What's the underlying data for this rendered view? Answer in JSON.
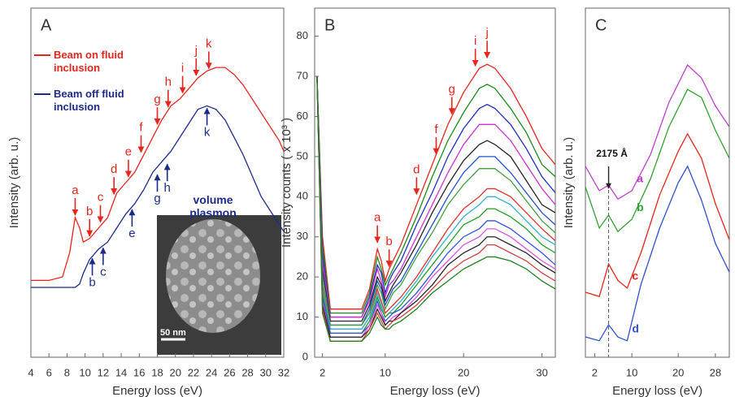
{
  "chart_data": [
    {
      "type": "line",
      "title": "A",
      "x_label": "Energy loss (eV)",
      "y_label": "Intensity (arb. u.)",
      "xlim": [
        4,
        32
      ],
      "ylim": [
        0,
        100
      ],
      "xticks": [
        4,
        6,
        8,
        10,
        12,
        14,
        16,
        18,
        20,
        22,
        24,
        26,
        28,
        30,
        32
      ],
      "x": [
        4,
        6,
        7.5,
        8.3,
        8.9,
        9.4,
        9.8,
        10.5,
        11.5,
        12.5,
        13.5,
        14.5,
        15.5,
        16.5,
        17.5,
        18.5,
        19.5,
        20.5,
        21.5,
        22.5,
        23.5,
        24.5,
        25.5,
        26.5,
        27.5,
        28.5,
        29.5,
        30.5,
        31.5,
        32
      ],
      "series": [
        {
          "name": "Beam on fluid inclusion",
          "color": "#e8241c",
          "values": [
            22,
            22,
            23,
            30,
            40,
            37,
            33,
            34,
            37,
            40,
            47,
            50,
            53,
            58,
            63,
            68,
            72,
            74,
            77,
            80,
            82,
            83,
            83,
            81,
            78,
            74,
            70,
            66,
            62,
            59
          ]
        },
        {
          "name": "Beam off fluid inclusion",
          "color": "#1c2a8a",
          "values": [
            20,
            20,
            20,
            20,
            20,
            21,
            24,
            28,
            31,
            33,
            37,
            41,
            44,
            48,
            53,
            56,
            59,
            63,
            67,
            71,
            72,
            71,
            68,
            63,
            58,
            52,
            46,
            42,
            38,
            36
          ]
        }
      ],
      "annotations": [
        {
          "text": "a",
          "x": 8.9,
          "y": 40,
          "color": "#e8241c",
          "direction": "down"
        },
        {
          "text": "b",
          "x": 10.5,
          "y": 34,
          "color": "#e8241c",
          "direction": "down"
        },
        {
          "text": "c",
          "x": 11.7,
          "y": 38,
          "color": "#e8241c",
          "direction": "down"
        },
        {
          "text": "d",
          "x": 13.2,
          "y": 46,
          "color": "#e8241c",
          "direction": "down"
        },
        {
          "text": "e",
          "x": 14.8,
          "y": 51,
          "color": "#e8241c",
          "direction": "down"
        },
        {
          "text": "f",
          "x": 16.2,
          "y": 58,
          "color": "#e8241c",
          "direction": "down"
        },
        {
          "text": "g",
          "x": 18,
          "y": 66,
          "color": "#e8241c",
          "direction": "down"
        },
        {
          "text": "h",
          "x": 19.2,
          "y": 71,
          "color": "#e8241c",
          "direction": "down"
        },
        {
          "text": "i",
          "x": 20.8,
          "y": 75,
          "color": "#e8241c",
          "direction": "down"
        },
        {
          "text": "j",
          "x": 22.3,
          "y": 80,
          "color": "#e8241c",
          "direction": "down"
        },
        {
          "text": "k",
          "x": 23.7,
          "y": 82,
          "color": "#e8241c",
          "direction": "down"
        },
        {
          "text": "b",
          "x": 10.8,
          "y": 29,
          "color": "#1c2a8a",
          "direction": "up"
        },
        {
          "text": "c",
          "x": 12,
          "y": 32,
          "color": "#1c2a8a",
          "direction": "up"
        },
        {
          "text": "e",
          "x": 15.2,
          "y": 43,
          "color": "#1c2a8a",
          "direction": "up"
        },
        {
          "text": "g",
          "x": 18,
          "y": 53,
          "color": "#1c2a8a",
          "direction": "up"
        },
        {
          "text": "h",
          "x": 19.1,
          "y": 56,
          "color": "#1c2a8a",
          "direction": "up"
        },
        {
          "text": "k",
          "x": 23.5,
          "y": 72,
          "color": "#1c2a8a",
          "direction": "up"
        }
      ],
      "note": "volume plasmon",
      "inset_label": "50 nm"
    },
    {
      "type": "line",
      "title": "B",
      "x_label": "Energy loss (eV)",
      "y_label": "Intensity counts ( x 10³ )",
      "xlim": [
        1,
        31.7
      ],
      "ylim": [
        0,
        87
      ],
      "xticks": [
        2,
        10,
        20,
        30
      ],
      "yticks": [
        0,
        10,
        20,
        30,
        40,
        50,
        60,
        70,
        80
      ],
      "x": [
        1.3,
        2,
        3,
        5,
        7,
        8,
        9,
        9.5,
        10,
        10.5,
        11,
        12,
        14,
        16,
        18,
        20,
        22,
        23,
        24,
        26,
        28,
        30,
        31.7
      ],
      "series": [
        {
          "color": "#e8241c",
          "values": [
            70,
            30,
            12,
            12,
            12,
            17,
            27,
            24,
            19,
            22,
            24,
            28,
            38,
            48,
            58,
            66,
            72,
            73,
            72,
            67,
            60,
            52,
            48
          ]
        },
        {
          "color": "#1a8a1a",
          "values": [
            70,
            28,
            11,
            11,
            11,
            16,
            25,
            22,
            18,
            20,
            22,
            26,
            35,
            45,
            54,
            61,
            67,
            68,
            67,
            62,
            56,
            48,
            45
          ]
        },
        {
          "color": "#2030c0",
          "values": [
            70,
            26,
            10,
            10,
            10,
            15,
            23,
            21,
            16,
            19,
            21,
            24,
            33,
            41,
            50,
            57,
            62,
            63,
            62,
            58,
            52,
            45,
            41
          ]
        },
        {
          "color": "#d030d0",
          "values": [
            70,
            24,
            10,
            10,
            10,
            14,
            22,
            19,
            15,
            18,
            19,
            22,
            30,
            38,
            46,
            53,
            58,
            58,
            58,
            54,
            48,
            42,
            38
          ]
        },
        {
          "color": "#222222",
          "values": [
            70,
            22,
            9,
            9,
            9,
            13,
            20,
            18,
            14,
            16,
            18,
            21,
            28,
            36,
            43,
            49,
            53,
            54,
            53,
            50,
            44,
            38,
            36
          ]
        },
        {
          "color": "#2050d0",
          "values": [
            70,
            21,
            8,
            8,
            8,
            12,
            19,
            17,
            13,
            15,
            17,
            19,
            26,
            33,
            40,
            46,
            50,
            50,
            50,
            46,
            41,
            36,
            33
          ]
        },
        {
          "color": "#40a040",
          "values": [
            70,
            20,
            8,
            8,
            8,
            11,
            18,
            16,
            12,
            14,
            16,
            18,
            25,
            31,
            38,
            43,
            47,
            47,
            47,
            44,
            39,
            34,
            31
          ]
        },
        {
          "color": "#e03030",
          "values": [
            70,
            18,
            7,
            7,
            7,
            10,
            17,
            14,
            11,
            12,
            13,
            15,
            20,
            26,
            32,
            37,
            40,
            42,
            42,
            40,
            36,
            32,
            29
          ]
        },
        {
          "color": "#30b0d0",
          "values": [
            70,
            17,
            7,
            7,
            7,
            10,
            16,
            13,
            10,
            11,
            12,
            14,
            19,
            25,
            30,
            35,
            38,
            40,
            40,
            38,
            34,
            30,
            28
          ]
        },
        {
          "color": "#20a020",
          "values": [
            70,
            16,
            6,
            6,
            6,
            9,
            15,
            12,
            10,
            11,
            11,
            13,
            18,
            23,
            28,
            33,
            35,
            37,
            37,
            35,
            32,
            28,
            26
          ]
        },
        {
          "color": "#3050e0",
          "values": [
            70,
            15,
            6,
            6,
            6,
            8,
            14,
            11,
            9,
            10,
            11,
            12,
            16,
            21,
            26,
            30,
            32,
            34,
            34,
            32,
            29,
            26,
            23
          ]
        },
        {
          "color": "#e050e0",
          "values": [
            70,
            14,
            5,
            5,
            5,
            8,
            13,
            11,
            8,
            9,
            10,
            11,
            15,
            20,
            24,
            28,
            30,
            32,
            32,
            30,
            27,
            24,
            22
          ]
        },
        {
          "color": "#222222",
          "values": [
            70,
            13,
            5,
            5,
            5,
            7,
            12,
            10,
            8,
            9,
            9,
            11,
            14,
            18,
            23,
            26,
            28,
            30,
            30,
            28,
            26,
            23,
            21
          ]
        },
        {
          "color": "#d04040",
          "values": [
            70,
            12,
            4,
            4,
            4,
            7,
            11,
            9,
            7,
            8,
            9,
            10,
            13,
            17,
            21,
            24,
            26,
            28,
            28,
            26,
            24,
            21,
            19
          ]
        },
        {
          "color": "#208020",
          "values": [
            70,
            11,
            4,
            4,
            4,
            6,
            10,
            8,
            7,
            7,
            8,
            9,
            12,
            16,
            19,
            22,
            24,
            25,
            25,
            24,
            22,
            19,
            17
          ]
        }
      ],
      "annotations": [
        {
          "text": "a",
          "x": 9,
          "y": 28,
          "color": "#e8241c",
          "direction": "down"
        },
        {
          "text": "b",
          "x": 10.5,
          "y": 22,
          "color": "#e8241c",
          "direction": "down"
        },
        {
          "text": "d",
          "x": 14,
          "y": 40,
          "color": "#e8241c",
          "direction": "down"
        },
        {
          "text": "f",
          "x": 16.5,
          "y": 50,
          "color": "#e8241c",
          "direction": "down"
        },
        {
          "text": "g",
          "x": 18.5,
          "y": 60,
          "color": "#e8241c",
          "direction": "down"
        },
        {
          "text": "i",
          "x": 21.5,
          "y": 72,
          "color": "#e8241c",
          "direction": "down"
        },
        {
          "text": "j",
          "x": 23,
          "y": 74,
          "color": "#e8241c",
          "direction": "down"
        }
      ]
    },
    {
      "type": "line",
      "title": "C",
      "x_label": "Energy loss (eV)",
      "y_label": "Intensity (arb. u.)",
      "xlim": [
        0,
        31
      ],
      "ylim": [
        0,
        100
      ],
      "xticks": [
        2,
        10,
        20,
        28
      ],
      "series": [
        {
          "name": "a",
          "color": "#c040d0",
          "x": [
            0,
            3,
            5,
            7,
            10,
            14,
            18,
            22,
            25,
            28,
            31
          ],
          "values": [
            54.7,
            47.7,
            49.3,
            45.3,
            47.7,
            58,
            73,
            83.7,
            80,
            72,
            66
          ]
        },
        {
          "name": "b",
          "color": "#30a030",
          "x": [
            0,
            3,
            5,
            7,
            10,
            14,
            18,
            22,
            25,
            28,
            31
          ],
          "values": [
            48.8,
            37,
            40.7,
            36,
            39.5,
            51,
            66,
            76.7,
            74.4,
            65,
            57
          ]
        },
        {
          "name": "c",
          "color": "#e8241c",
          "x": [
            0,
            3,
            5,
            7,
            9,
            12,
            16,
            20,
            22,
            25,
            28,
            31
          ],
          "values": [
            18.6,
            17.4,
            26.7,
            22,
            19.8,
            30,
            46.5,
            59,
            64,
            57,
            44,
            33.7
          ]
        },
        {
          "name": "d",
          "color": "#3050d0",
          "x": [
            0,
            3,
            5,
            7,
            9,
            12,
            16,
            20,
            22,
            25,
            28,
            31
          ],
          "values": [
            5.8,
            4.7,
            9.3,
            5.8,
            4.7,
            21,
            37,
            50,
            54.7,
            45,
            32.6,
            24.4
          ]
        }
      ],
      "marker": {
        "text": "2175 Å",
        "x": 5
      }
    }
  ]
}
